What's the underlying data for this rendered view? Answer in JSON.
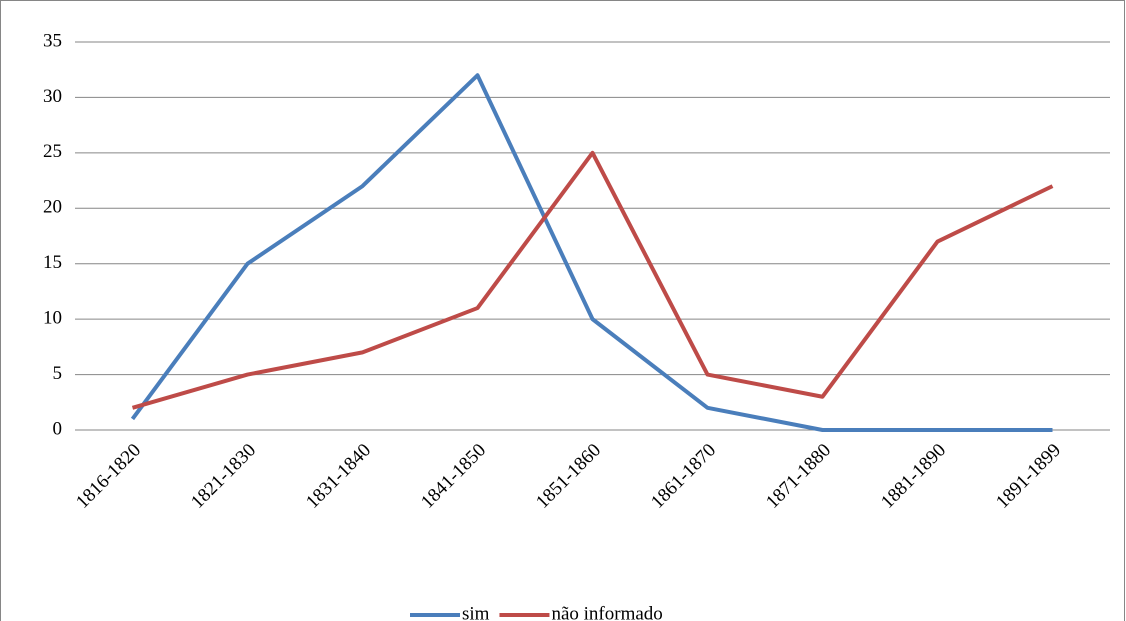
{
  "chart_data": {
    "type": "line",
    "categories": [
      "1816-1820",
      "1821-1830",
      "1831-1840",
      "1841-1850",
      "1851-1860",
      "1861-1870",
      "1871-1880",
      "1881-1890",
      "1891-1899"
    ],
    "series": [
      {
        "name": "sim",
        "color": "#4a7ebb",
        "values": [
          1,
          15,
          22,
          32,
          10,
          2,
          0,
          0,
          0
        ]
      },
      {
        "name": "não informado",
        "color": "#be4b48",
        "values": [
          2,
          5,
          7,
          11,
          25,
          5,
          3,
          17,
          22
        ]
      }
    ],
    "ylim": [
      0,
      35
    ],
    "yticks": [
      0,
      5,
      10,
      15,
      20,
      25,
      30,
      35
    ],
    "grid": true,
    "legend": "bottom"
  }
}
